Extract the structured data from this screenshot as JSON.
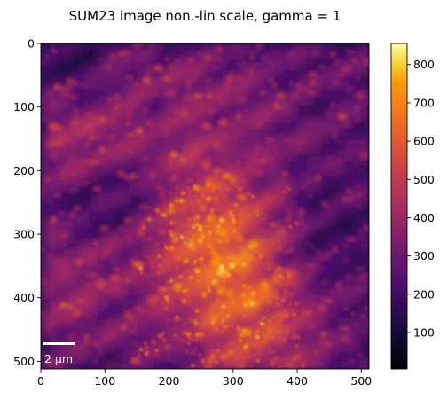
{
  "chart_data": {
    "type": "heatmap",
    "title": "SUM23 image non.-lin scale, gamma = 1",
    "xlabel": "",
    "ylabel": "",
    "xlim": [
      0,
      512
    ],
    "ylim": [
      512,
      0
    ],
    "x_ticks": [
      0,
      100,
      200,
      300,
      400,
      500
    ],
    "y_ticks": [
      0,
      100,
      200,
      300,
      400,
      500
    ],
    "colormap": "inferno",
    "colorbar": {
      "range": [
        5,
        855
      ],
      "ticks": [
        100,
        200,
        300,
        400,
        500,
        600,
        700,
        800
      ]
    },
    "scale_bar": {
      "label": "2 µm",
      "color": "#ffffff"
    },
    "grid": false,
    "legend": "none"
  }
}
